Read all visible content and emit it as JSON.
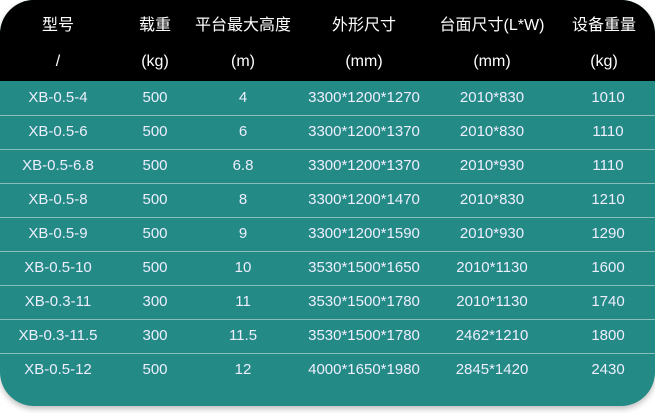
{
  "colors": {
    "header_bg": "#000000",
    "body_bg": "#238a85",
    "text": "#ffffff"
  },
  "header": {
    "titles": [
      "型号",
      "载重",
      "平台最大高度",
      "外形尺寸",
      "台面尺寸(L*W)",
      "设备重量"
    ],
    "units": [
      "/",
      "(kg)",
      "(m)",
      "(mm)",
      "(mm)",
      "(kg)"
    ]
  },
  "rows": [
    [
      "XB-0.5-4",
      "500",
      "4",
      "3300*1200*1270",
      "2010*830",
      "1010"
    ],
    [
      "XB-0.5-6",
      "500",
      "6",
      "3300*1200*1370",
      "2010*830",
      "1110"
    ],
    [
      "XB-0.5-6.8",
      "500",
      "6.8",
      "3300*1200*1370",
      "2010*930",
      "1110"
    ],
    [
      "XB-0.5-8",
      "500",
      "8",
      "3300*1200*1470",
      "2010*830",
      "1210"
    ],
    [
      "XB-0.5-9",
      "500",
      "9",
      "3300*1200*1590",
      "2010*930",
      "1290"
    ],
    [
      "XB-0.5-10",
      "500",
      "10",
      "3530*1500*1650",
      "2010*1130",
      "1600"
    ],
    [
      "XB-0.3-11",
      "300",
      "11",
      "3530*1500*1780",
      "2010*1130",
      "1740"
    ],
    [
      "XB-0.3-11.5",
      "300",
      "11.5",
      "3530*1500*1780",
      "2462*1210",
      "1800"
    ],
    [
      "XB-0.5-12",
      "500",
      "12",
      "4000*1650*1980",
      "2845*1420",
      "2430"
    ]
  ]
}
